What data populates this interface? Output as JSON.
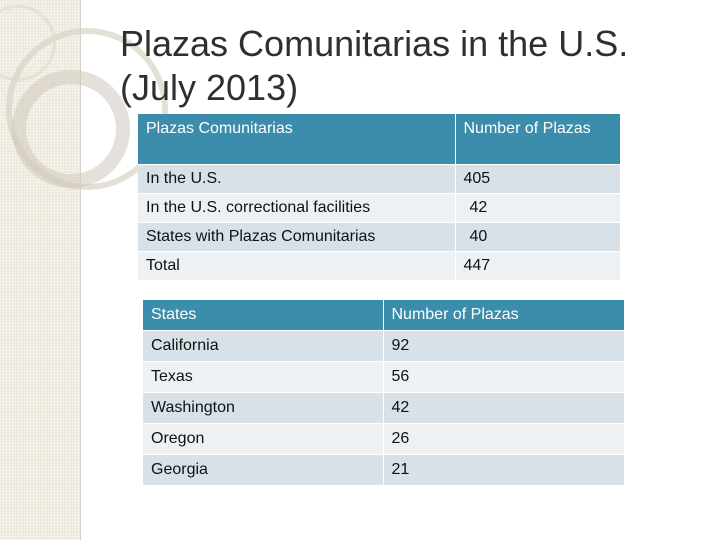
{
  "slide": {
    "title_line1": "Plazas Comunitarias in the U.S.",
    "title_line2": "(July 2013)"
  },
  "summary_table": {
    "headers": [
      "Plazas Comunitarias",
      "Number of Plazas"
    ],
    "rows": [
      {
        "label": "In the U.S.",
        "value": "405"
      },
      {
        "label": "In the U.S. correctional facilities",
        "value": "42"
      },
      {
        "label": "States with Plazas Comunitarias",
        "value": "40"
      },
      {
        "label": "Total",
        "value": "447"
      }
    ]
  },
  "states_table": {
    "headers": [
      "States",
      "Number of Plazas"
    ],
    "rows": [
      {
        "state": "California",
        "value": "92"
      },
      {
        "state": "Texas",
        "value": "56"
      },
      {
        "state": "Washington",
        "value": "42"
      },
      {
        "state": "Oregon",
        "value": "26"
      },
      {
        "state": "Georgia",
        "value": "21"
      }
    ]
  },
  "colors": {
    "header_bg": "#3b8dab",
    "row_dark": "#d8e1e7",
    "row_light": "#edf1f4",
    "side_band": "#ece8dc"
  }
}
